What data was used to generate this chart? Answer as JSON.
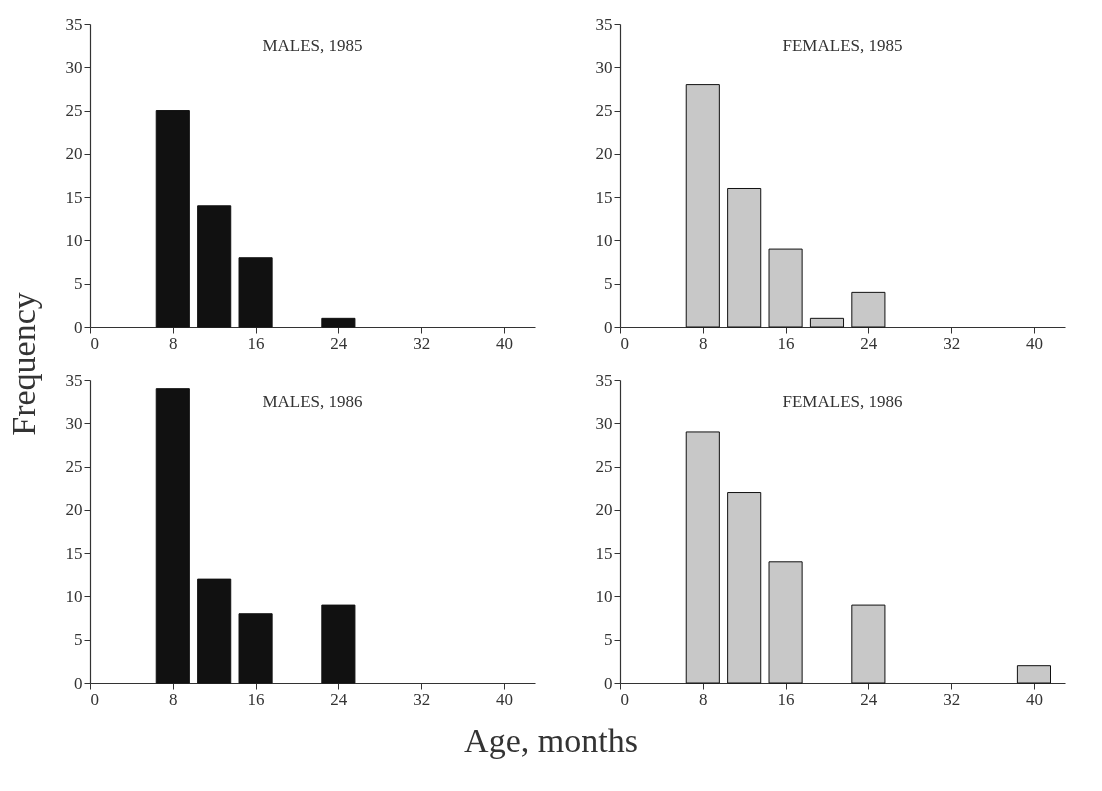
{
  "chart_data": [
    {
      "type": "bar",
      "title": "MALES, 1985",
      "ylabel": "Frequency",
      "x": [
        8,
        12,
        16,
        24
      ],
      "series": [
        {
          "color": "#111111",
          "values": [
            25,
            14,
            8,
            1
          ]
        }
      ],
      "xlim": [
        0,
        43
      ],
      "xticks": [
        0,
        8,
        16,
        24,
        32,
        40
      ],
      "ylim": [
        0,
        35
      ],
      "yticks": [
        0,
        5,
        10,
        15,
        20,
        25,
        30,
        35
      ],
      "grid": false
    },
    {
      "type": "bar",
      "title": "FEMALES, 1985",
      "x": [
        8,
        12,
        16,
        20,
        24
      ],
      "series": [
        {
          "color": "#c8c8c8",
          "values": [
            28,
            16,
            9,
            1,
            4
          ]
        }
      ],
      "xlim": [
        0,
        43
      ],
      "xticks": [
        0,
        8,
        16,
        24,
        32,
        40
      ],
      "ylim": [
        0,
        35
      ],
      "yticks": [
        0,
        5,
        10,
        15,
        20,
        25,
        30,
        35
      ],
      "grid": false
    },
    {
      "type": "bar",
      "title": "MALES, 1986",
      "xlabel": "Age, months",
      "x": [
        8,
        12,
        16,
        24
      ],
      "series": [
        {
          "color": "#111111",
          "values": [
            34,
            12,
            8,
            9
          ]
        }
      ],
      "xlim": [
        0,
        43
      ],
      "xticks": [
        0,
        8,
        16,
        24,
        32,
        40
      ],
      "ylim": [
        0,
        35
      ],
      "yticks": [
        0,
        5,
        10,
        15,
        20,
        25,
        30,
        35
      ],
      "grid": false
    },
    {
      "type": "bar",
      "title": "FEMALES, 1986",
      "x": [
        8,
        12,
        16,
        24,
        40
      ],
      "series": [
        {
          "color": "#c8c8c8",
          "values": [
            29,
            22,
            14,
            9,
            2
          ]
        }
      ],
      "xlim": [
        0,
        43
      ],
      "xticks": [
        0,
        8,
        16,
        24,
        32,
        40
      ],
      "ylim": [
        0,
        35
      ],
      "yticks": [
        0,
        5,
        10,
        15,
        20,
        25,
        30,
        35
      ],
      "grid": false
    }
  ]
}
